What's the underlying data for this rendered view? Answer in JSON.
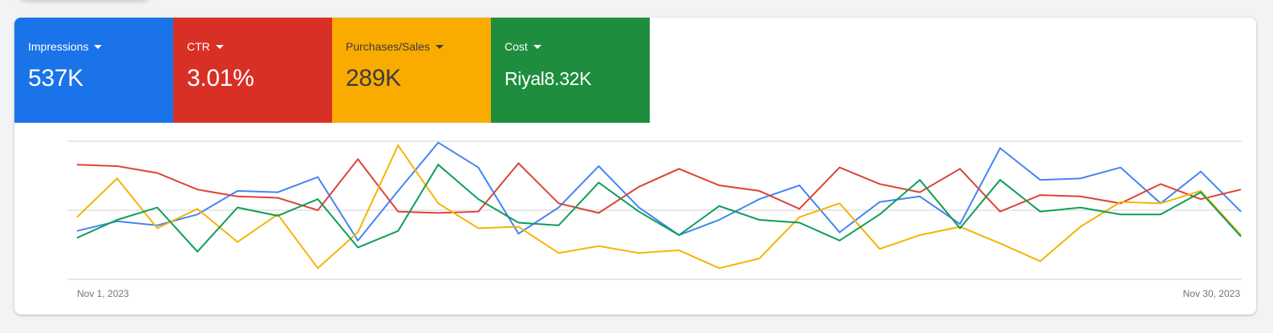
{
  "metrics": [
    {
      "label": "Impressions",
      "value": "537K",
      "color": "#1a73e8",
      "text_color": "#ffffff"
    },
    {
      "label": "CTR",
      "value": "3.01%",
      "color": "#d93025",
      "text_color": "#ffffff"
    },
    {
      "label": "Purchases/Sales",
      "value": "289K",
      "color": "#f9ab00",
      "text_color": "#3c3c3c"
    },
    {
      "label": "Cost",
      "value": "Riyal8.32K",
      "color": "#1e8e3e",
      "text_color": "#ffffff"
    }
  ],
  "chart_data": {
    "type": "line",
    "title": "",
    "xlabel": "",
    "ylabel": "",
    "x_tick_labels": [
      "Nov 1, 2023",
      "Nov 30, 2023"
    ],
    "x": [
      "Nov 1",
      "Nov 2",
      "Nov 3",
      "Nov 4",
      "Nov 5",
      "Nov 6",
      "Nov 7",
      "Nov 8",
      "Nov 9",
      "Nov 10",
      "Nov 11",
      "Nov 12",
      "Nov 13",
      "Nov 14",
      "Nov 15",
      "Nov 16",
      "Nov 17",
      "Nov 18",
      "Nov 19",
      "Nov 20",
      "Nov 21",
      "Nov 22",
      "Nov 23",
      "Nov 24",
      "Nov 25",
      "Nov 26",
      "Nov 27",
      "Nov 28",
      "Nov 29",
      "Nov 30"
    ],
    "ylim": [
      0,
      100
    ],
    "grid": true,
    "gridlines": [
      0,
      50,
      100
    ],
    "normalized": true,
    "legend": "metric tiles above chart",
    "series": [
      {
        "name": "Impressions",
        "color": "#4285f4",
        "values": [
          35,
          42,
          39,
          47,
          64,
          63,
          74,
          28,
          64,
          99,
          81,
          33,
          52,
          82,
          52,
          32,
          43,
          58,
          68,
          34,
          56,
          60,
          40,
          95,
          72,
          73,
          81,
          55,
          78,
          49
        ]
      },
      {
        "name": "CTR",
        "color": "#db4437",
        "values": [
          83,
          82,
          77,
          65,
          60,
          59,
          50,
          87,
          49,
          48,
          49,
          84,
          55,
          48,
          67,
          80,
          68,
          64,
          51,
          81,
          69,
          63,
          80,
          49,
          61,
          60,
          55,
          69,
          58,
          65
        ]
      },
      {
        "name": "Purchases/Sales",
        "color": "#f4b400",
        "values": [
          45,
          73,
          37,
          51,
          27,
          47,
          8,
          34,
          97,
          55,
          37,
          38,
          19,
          24,
          19,
          21,
          8,
          15,
          45,
          55,
          22,
          32,
          38,
          26,
          13,
          38,
          56,
          55,
          64,
          32
        ]
      },
      {
        "name": "Cost",
        "color": "#0f9d58",
        "values": [
          30,
          43,
          52,
          20,
          52,
          46,
          58,
          23,
          35,
          83,
          58,
          41,
          39,
          70,
          49,
          32,
          53,
          43,
          41,
          28,
          47,
          72,
          37,
          72,
          49,
          52,
          47,
          47,
          63,
          31
        ]
      }
    ]
  }
}
